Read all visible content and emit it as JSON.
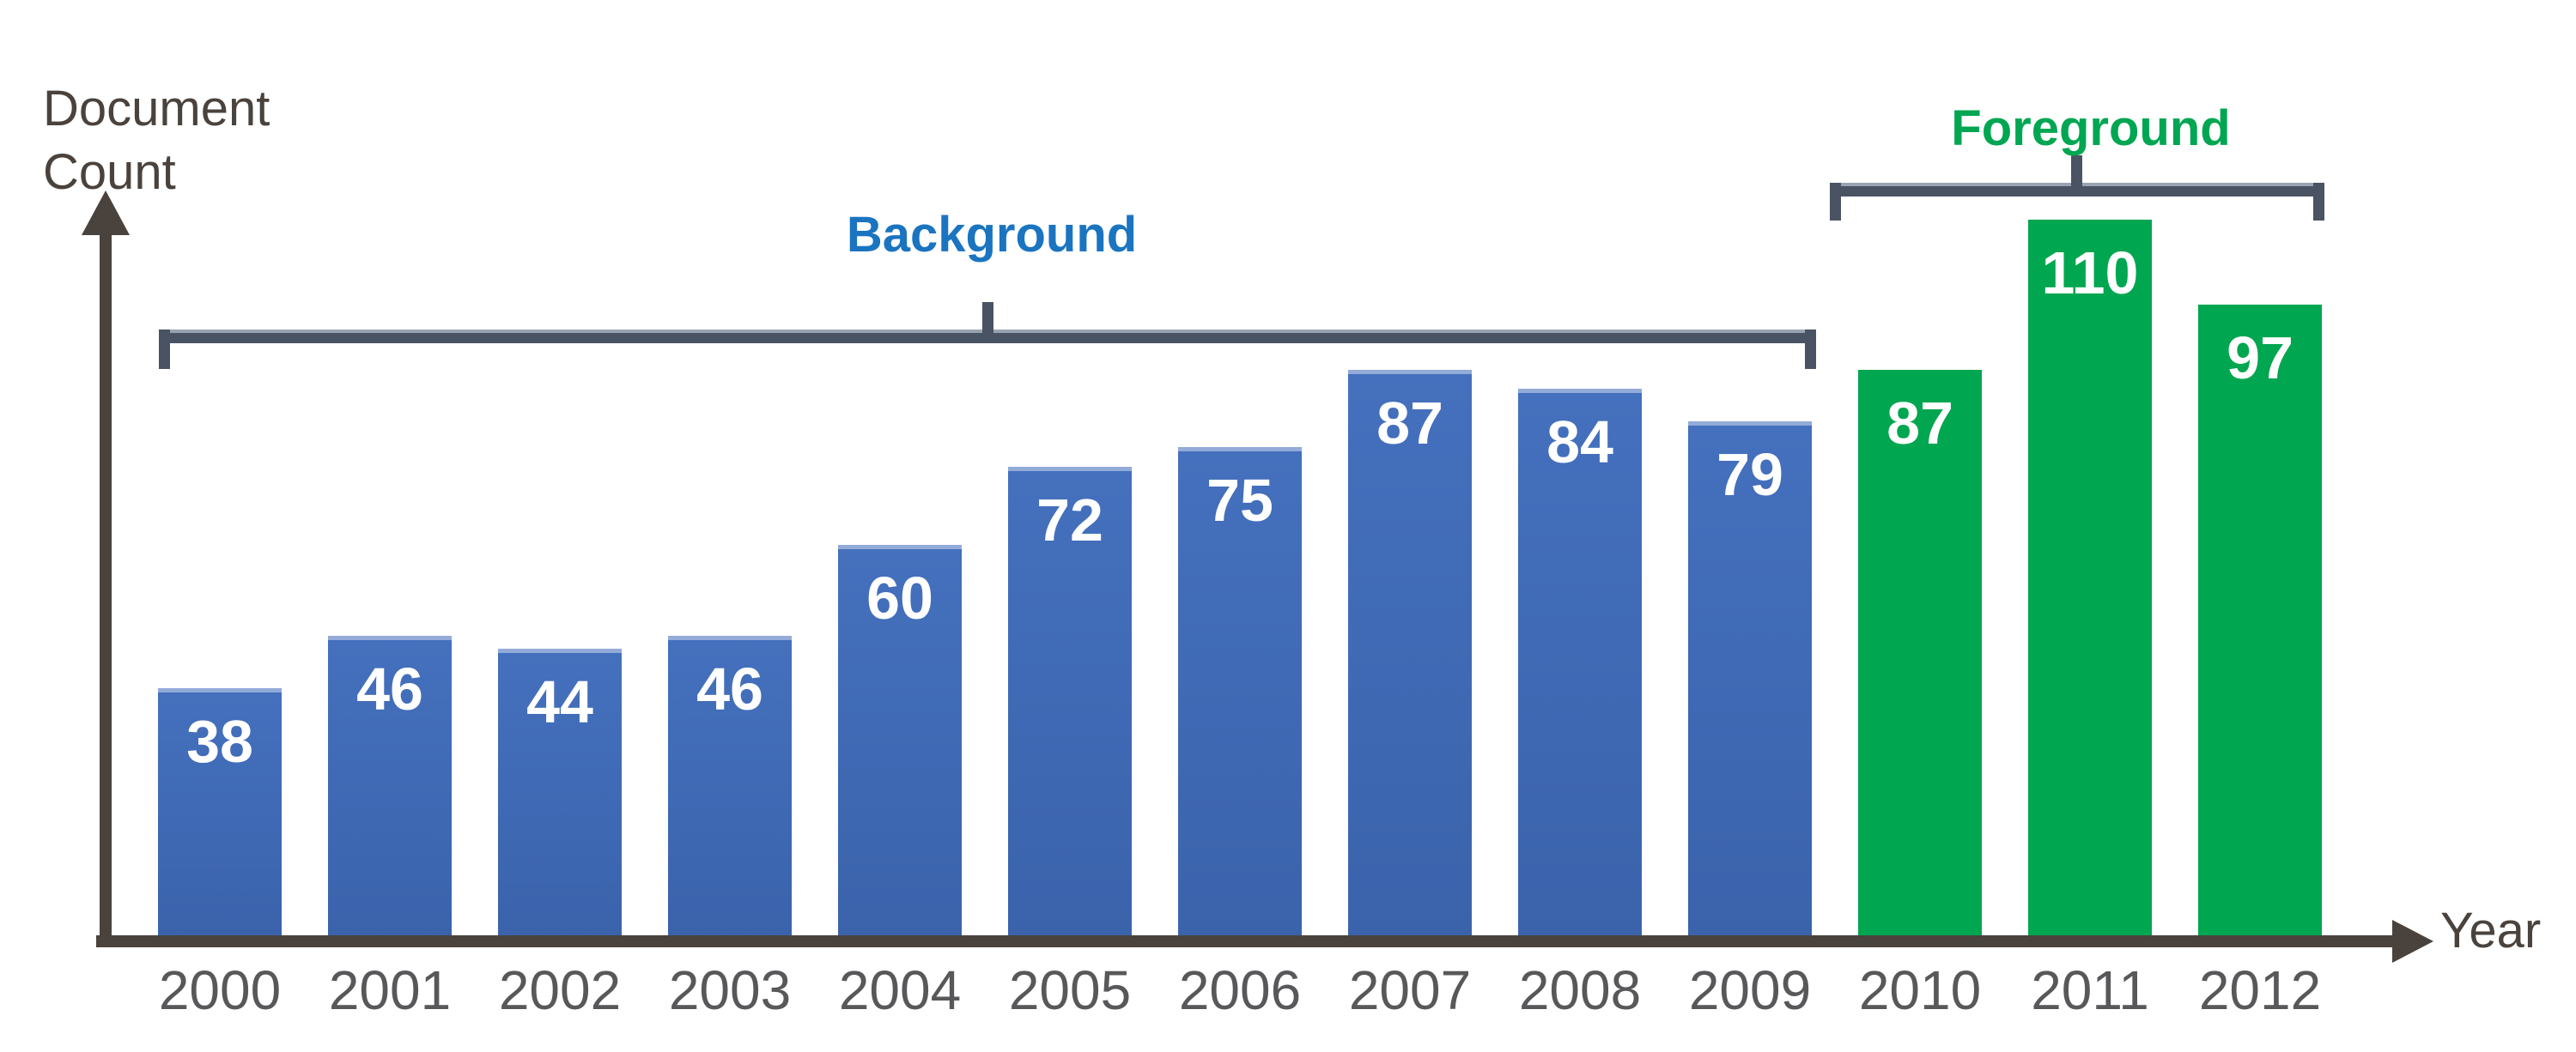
{
  "labels": {
    "y_axis": "Document Count",
    "x_axis": "Year"
  },
  "groups": [
    {
      "label": "Background",
      "color": "#1b74c0",
      "categories_from": "2000",
      "categories_to": "2009"
    },
    {
      "label": "Foreground",
      "color": "#00a651",
      "categories_from": "2010",
      "categories_to": "2012"
    }
  ],
  "chart_data": {
    "type": "bar",
    "title": "",
    "xlabel": "Year",
    "ylabel": "Document Count",
    "categories": [
      "2000",
      "2001",
      "2002",
      "2003",
      "2004",
      "2005",
      "2006",
      "2007",
      "2008",
      "2009",
      "2010",
      "2011",
      "2012"
    ],
    "series": [
      {
        "name": "Background",
        "color": "#4470bd",
        "values": [
          38,
          46,
          44,
          46,
          60,
          72,
          75,
          87,
          84,
          79
        ]
      },
      {
        "name": "Foreground",
        "color": "#00a650",
        "values": [
          87,
          110,
          97
        ]
      }
    ],
    "value_labels_shown": true,
    "ylim": [
      0,
      115
    ],
    "grid": false,
    "legend_position": "bracket annotations above bar groups"
  },
  "colors": {
    "axis": "#4a423c",
    "axis_text": "#4a423c",
    "year_text": "#58585b",
    "bracket": "#495364",
    "bracket_highlight": "#9aa3b2",
    "background_label": "#1b74c0",
    "foreground_label": "#00a651",
    "bar_blue": "#4470bd",
    "bar_blue_dark": "#3b63ac",
    "bar_blue_highlight": "#93abd9",
    "bar_green": "#00a650",
    "value_text": "#ffffff"
  }
}
